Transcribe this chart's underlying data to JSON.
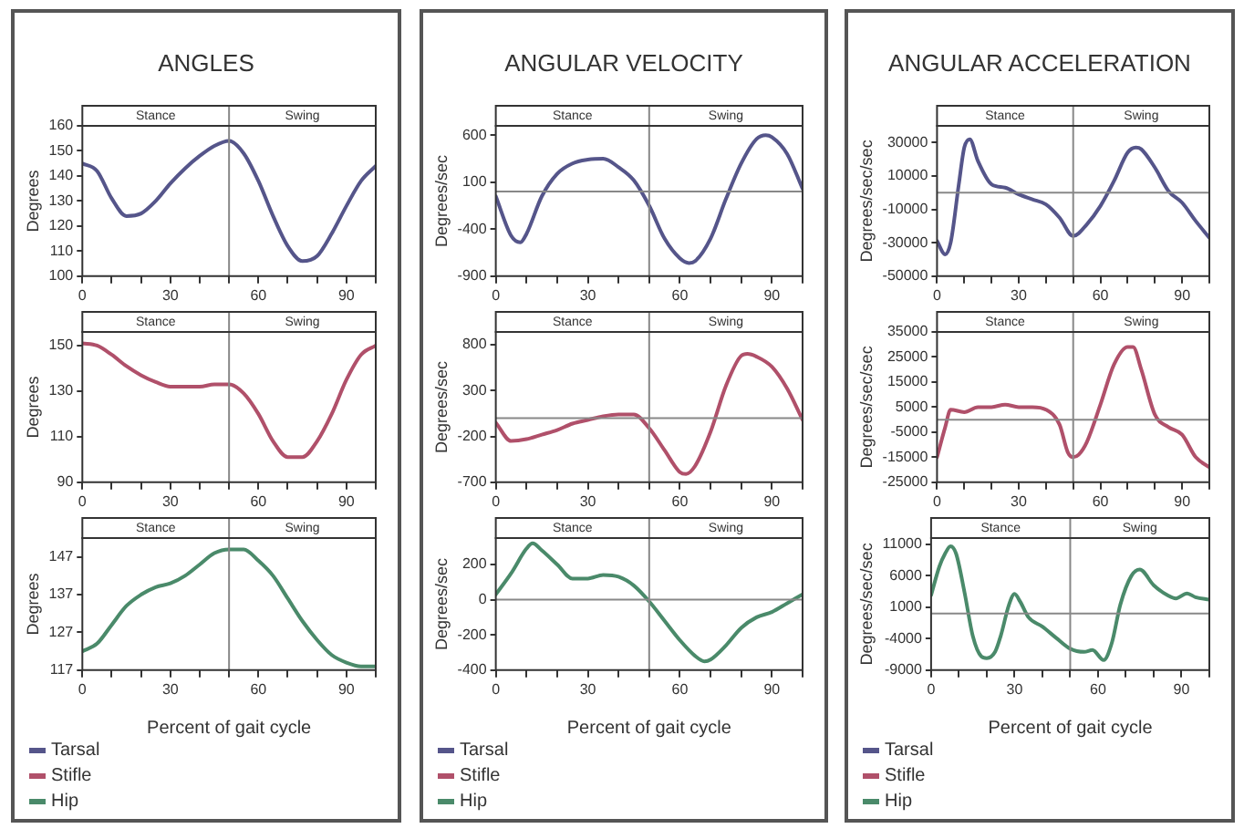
{
  "chart_data": [
    {
      "type": "line",
      "title": "ANGLES",
      "ylabel": "Degrees",
      "legend": "bottom",
      "xlim": [
        0,
        100
      ],
      "ylim": [
        100,
        160
      ],
      "xticks": [
        0,
        {
          "value": 10,
          "label": null
        },
        {
          "value": 20,
          "label": null
        },
        30,
        {
          "value": 40,
          "label": null
        },
        {
          "value": 50,
          "label": null
        },
        60,
        {
          "value": 70,
          "label": null
        },
        {
          "value": 80,
          "label": null
        },
        90,
        {
          "value": 100,
          "label": null
        }
      ],
      "yticks": [
        100,
        110,
        120,
        130,
        140,
        150,
        160
      ],
      "annotations": [
        "Stance",
        "Swing"
      ],
      "ref_lines": [
        {
          "axis": "x",
          "value": 50
        }
      ],
      "x": [
        0,
        5,
        10,
        15,
        20,
        25,
        30,
        35,
        40,
        45,
        50,
        55,
        60,
        65,
        70,
        75,
        80,
        85,
        90,
        95,
        100
      ],
      "series": [
        {
          "name": "Tarsal",
          "color": "#55558a",
          "values": [
            145,
            142,
            131,
            124,
            125,
            130,
            137,
            143,
            148,
            152,
            154,
            149,
            138,
            124,
            112,
            106,
            108,
            117,
            128,
            138,
            144
          ]
        }
      ]
    },
    {
      "type": "line",
      "ylabel": "Degrees",
      "legend": "bottom",
      "xlim": [
        0,
        100
      ],
      "ylim": [
        90,
        156
      ],
      "xticks": [
        0,
        {
          "value": 10,
          "label": null
        },
        {
          "value": 20,
          "label": null
        },
        30,
        {
          "value": 40,
          "label": null
        },
        {
          "value": 50,
          "label": null
        },
        60,
        {
          "value": 70,
          "label": null
        },
        {
          "value": 80,
          "label": null
        },
        90,
        {
          "value": 100,
          "label": null
        }
      ],
      "yticks": [
        90,
        110,
        130,
        150
      ],
      "annotations": [
        "Stance",
        "Swing"
      ],
      "ref_lines": [
        {
          "axis": "x",
          "value": 50
        }
      ],
      "x": [
        0,
        5,
        10,
        15,
        20,
        25,
        30,
        35,
        40,
        45,
        50,
        55,
        60,
        65,
        70,
        75,
        80,
        85,
        90,
        95,
        100
      ],
      "series": [
        {
          "name": "Stifle",
          "color": "#b0506a",
          "values": [
            151,
            150,
            146,
            141,
            137,
            134,
            132,
            132,
            132,
            133,
            133,
            129,
            120,
            108,
            101,
            101,
            108,
            120,
            135,
            146,
            150
          ]
        }
      ]
    },
    {
      "type": "line",
      "xlabel": "Percent of gait cycle",
      "ylabel": "Degrees",
      "legend": "bottom",
      "xlim": [
        0,
        100
      ],
      "ylim": [
        117,
        152
      ],
      "xticks": [
        0,
        {
          "value": 10,
          "label": null
        },
        {
          "value": 20,
          "label": null
        },
        30,
        {
          "value": 40,
          "label": null
        },
        {
          "value": 50,
          "label": null
        },
        60,
        {
          "value": 70,
          "label": null
        },
        {
          "value": 80,
          "label": null
        },
        90,
        {
          "value": 100,
          "label": null
        }
      ],
      "yticks": [
        117,
        127,
        137,
        147
      ],
      "annotations": [
        "Stance",
        "Swing"
      ],
      "ref_lines": [
        {
          "axis": "x",
          "value": 50
        }
      ],
      "x": [
        0,
        5,
        10,
        15,
        20,
        25,
        30,
        35,
        40,
        45,
        50,
        55,
        60,
        65,
        70,
        75,
        80,
        85,
        90,
        95,
        100
      ],
      "series": [
        {
          "name": "Hip",
          "color": "#4a8a6a",
          "values": [
            122,
            124,
            129,
            134,
            137,
            139,
            140,
            142,
            145,
            148,
            149,
            149,
            146,
            142,
            136,
            130,
            125,
            121,
            119,
            118,
            118
          ]
        }
      ]
    },
    {
      "type": "line",
      "title": "ANGULAR VELOCITY",
      "ylabel": "Degrees/sec",
      "legend": "bottom",
      "xlim": [
        0,
        100
      ],
      "ylim": [
        -900,
        700
      ],
      "xticks": [
        0,
        {
          "value": 10,
          "label": null
        },
        {
          "value": 20,
          "label": null
        },
        30,
        {
          "value": 40,
          "label": null
        },
        {
          "value": 50,
          "label": null
        },
        60,
        {
          "value": 70,
          "label": null
        },
        {
          "value": 80,
          "label": null
        },
        90,
        {
          "value": 100,
          "label": null
        }
      ],
      "yticks": [
        -900,
        -400,
        100,
        600
      ],
      "annotations": [
        "Stance",
        "Swing"
      ],
      "ref_lines": [
        {
          "axis": "x",
          "value": 50
        },
        {
          "axis": "y",
          "value": 0
        }
      ],
      "x": [
        0,
        5,
        8,
        10,
        15,
        20,
        25,
        30,
        35,
        40,
        45,
        50,
        55,
        60,
        63,
        65,
        70,
        75,
        80,
        85,
        88,
        90,
        95,
        100
      ],
      "series": [
        {
          "name": "Tarsal",
          "color": "#55558a",
          "values": [
            -50,
            -470,
            -540,
            -450,
            -50,
            190,
            300,
            340,
            350,
            260,
            120,
            -150,
            -500,
            -710,
            -760,
            -740,
            -500,
            -80,
            300,
            560,
            600,
            580,
            400,
            30
          ]
        }
      ]
    },
    {
      "type": "line",
      "ylabel": "Degrees/sec",
      "legend": "bottom",
      "xlim": [
        0,
        100
      ],
      "ylim": [
        -700,
        940
      ],
      "xticks": [
        0,
        {
          "value": 10,
          "label": null
        },
        {
          "value": 20,
          "label": null
        },
        30,
        {
          "value": 40,
          "label": null
        },
        {
          "value": 50,
          "label": null
        },
        60,
        {
          "value": 70,
          "label": null
        },
        {
          "value": 80,
          "label": null
        },
        90,
        {
          "value": 100,
          "label": null
        }
      ],
      "yticks": [
        -700,
        -200,
        300,
        800
      ],
      "annotations": [
        "Stance",
        "Swing"
      ],
      "ref_lines": [
        {
          "axis": "x",
          "value": 50
        },
        {
          "axis": "y",
          "value": 0
        }
      ],
      "x": [
        0,
        5,
        10,
        15,
        20,
        25,
        30,
        35,
        40,
        45,
        50,
        55,
        60,
        62,
        65,
        70,
        75,
        80,
        82,
        85,
        90,
        95,
        100
      ],
      "series": [
        {
          "name": "Stifle",
          "color": "#b0506a",
          "values": [
            -50,
            -250,
            -230,
            -180,
            -130,
            -60,
            -20,
            20,
            40,
            40,
            -110,
            -350,
            -590,
            -610,
            -520,
            -150,
            350,
            680,
            700,
            670,
            560,
            320,
            -20
          ]
        }
      ]
    },
    {
      "type": "line",
      "xlabel": "Percent of gait cycle",
      "ylabel": "Degrees/sec",
      "legend": "bottom",
      "xlim": [
        0,
        100
      ],
      "ylim": [
        -400,
        350
      ],
      "xticks": [
        0,
        {
          "value": 10,
          "label": null
        },
        {
          "value": 20,
          "label": null
        },
        30,
        {
          "value": 40,
          "label": null
        },
        {
          "value": 50,
          "label": null
        },
        60,
        {
          "value": 70,
          "label": null
        },
        {
          "value": 80,
          "label": null
        },
        90,
        {
          "value": 100,
          "label": null
        }
      ],
      "yticks": [
        -400,
        -200,
        0,
        200
      ],
      "annotations": [
        "Stance",
        "Swing"
      ],
      "ref_lines": [
        {
          "axis": "x",
          "value": 50
        },
        {
          "axis": "y",
          "value": 0
        }
      ],
      "x": [
        0,
        5,
        10,
        12,
        15,
        20,
        25,
        30,
        35,
        40,
        45,
        50,
        55,
        60,
        65,
        68,
        70,
        75,
        80,
        85,
        90,
        95,
        100
      ],
      "series": [
        {
          "name": "Hip",
          "color": "#4a8a6a",
          "values": [
            30,
            150,
            290,
            320,
            280,
            200,
            120,
            120,
            140,
            130,
            80,
            -10,
            -120,
            -230,
            -320,
            -350,
            -340,
            -260,
            -160,
            -100,
            -70,
            -20,
            30
          ]
        }
      ]
    },
    {
      "type": "line",
      "title": "ANGULAR ACCELERATION",
      "ylabel": "Degrees/sec/sec",
      "legend": "bottom",
      "xlim": [
        0,
        100
      ],
      "ylim": [
        -50000,
        40000
      ],
      "xticks": [
        0,
        {
          "value": 10,
          "label": null
        },
        {
          "value": 20,
          "label": null
        },
        30,
        {
          "value": 40,
          "label": null
        },
        {
          "value": 50,
          "label": null
        },
        60,
        {
          "value": 70,
          "label": null
        },
        {
          "value": 80,
          "label": null
        },
        90,
        {
          "value": 100,
          "label": null
        }
      ],
      "yticks": [
        -50000,
        -30000,
        -10000,
        10000,
        30000
      ],
      "annotations": [
        "Stance",
        "Swing"
      ],
      "ref_lines": [
        {
          "axis": "x",
          "value": 50
        },
        {
          "axis": "y",
          "value": 0
        }
      ],
      "x": [
        0,
        3,
        5,
        8,
        10,
        12,
        15,
        20,
        25,
        30,
        35,
        40,
        45,
        50,
        55,
        60,
        65,
        70,
        73,
        75,
        80,
        85,
        90,
        95,
        100
      ],
      "series": [
        {
          "name": "Tarsal",
          "color": "#55558a",
          "values": [
            -29000,
            -37000,
            -30000,
            5000,
            27000,
            32000,
            19000,
            5000,
            3000,
            -1000,
            -4000,
            -7000,
            -15000,
            -26000,
            -19000,
            -8000,
            7000,
            24000,
            27000,
            26000,
            15000,
            1000,
            -6000,
            -17000,
            -27000
          ]
        }
      ]
    },
    {
      "type": "line",
      "ylabel": "Degrees/sec/sec",
      "legend": "bottom",
      "xlim": [
        0,
        100
      ],
      "ylim": [
        -25000,
        35000
      ],
      "xticks": [
        0,
        {
          "value": 10,
          "label": null
        },
        {
          "value": 20,
          "label": null
        },
        30,
        {
          "value": 40,
          "label": null
        },
        {
          "value": 50,
          "label": null
        },
        60,
        {
          "value": 70,
          "label": null
        },
        {
          "value": 80,
          "label": null
        },
        90,
        {
          "value": 100,
          "label": null
        }
      ],
      "yticks": [
        -25000,
        -15000,
        -5000,
        5000,
        15000,
        25000,
        35000
      ],
      "annotations": [
        "Stance",
        "Swing"
      ],
      "ref_lines": [
        {
          "axis": "x",
          "value": 50
        },
        {
          "axis": "y",
          "value": 0
        }
      ],
      "x": [
        0,
        3,
        5,
        10,
        15,
        20,
        25,
        30,
        35,
        40,
        45,
        48,
        50,
        52,
        55,
        60,
        65,
        70,
        72,
        75,
        80,
        85,
        90,
        95,
        100
      ],
      "series": [
        {
          "name": "Stifle",
          "color": "#b0506a",
          "values": [
            -15000,
            -3000,
            4000,
            3000,
            5000,
            5000,
            6000,
            5000,
            5000,
            4000,
            -2000,
            -13000,
            -15000,
            -14000,
            -9000,
            6000,
            22000,
            29000,
            29000,
            20000,
            2000,
            -3000,
            -6000,
            -15000,
            -19000
          ]
        }
      ]
    },
    {
      "type": "line",
      "xlabel": "Percent of gait cycle",
      "ylabel": "Degrees/sec/sec",
      "legend": "bottom",
      "xlim": [
        0,
        100
      ],
      "ylim": [
        -9000,
        12000
      ],
      "xticks": [
        0,
        {
          "value": 10,
          "label": null
        },
        {
          "value": 20,
          "label": null
        },
        30,
        {
          "value": 40,
          "label": null
        },
        {
          "value": 50,
          "label": null
        },
        60,
        {
          "value": 70,
          "label": null
        },
        {
          "value": 80,
          "label": null
        },
        90,
        {
          "value": 100,
          "label": null
        }
      ],
      "yticks": [
        -9000,
        -4000,
        1000,
        6000,
        11000
      ],
      "annotations": [
        "Stance",
        "Swing"
      ],
      "ref_lines": [
        {
          "axis": "x",
          "value": 50
        },
        {
          "axis": "y",
          "value": 0
        }
      ],
      "x": [
        0,
        3,
        5,
        7,
        9,
        12,
        15,
        18,
        20,
        23,
        25,
        28,
        30,
        32,
        35,
        40,
        45,
        50,
        55,
        58,
        62,
        65,
        68,
        72,
        75,
        80,
        85,
        88,
        92,
        95,
        100
      ],
      "series": [
        {
          "name": "Hip",
          "color": "#4a8a6a",
          "values": [
            2900,
            7500,
            9500,
            10700,
            9500,
            3400,
            -3600,
            -6800,
            -7100,
            -6100,
            -3600,
            1400,
            3100,
            1900,
            -600,
            -2100,
            -3900,
            -5600,
            -6100,
            -5800,
            -7400,
            -4600,
            1400,
            6000,
            7000,
            4500,
            2900,
            2400,
            3200,
            2600,
            2200
          ]
        }
      ]
    }
  ]
}
